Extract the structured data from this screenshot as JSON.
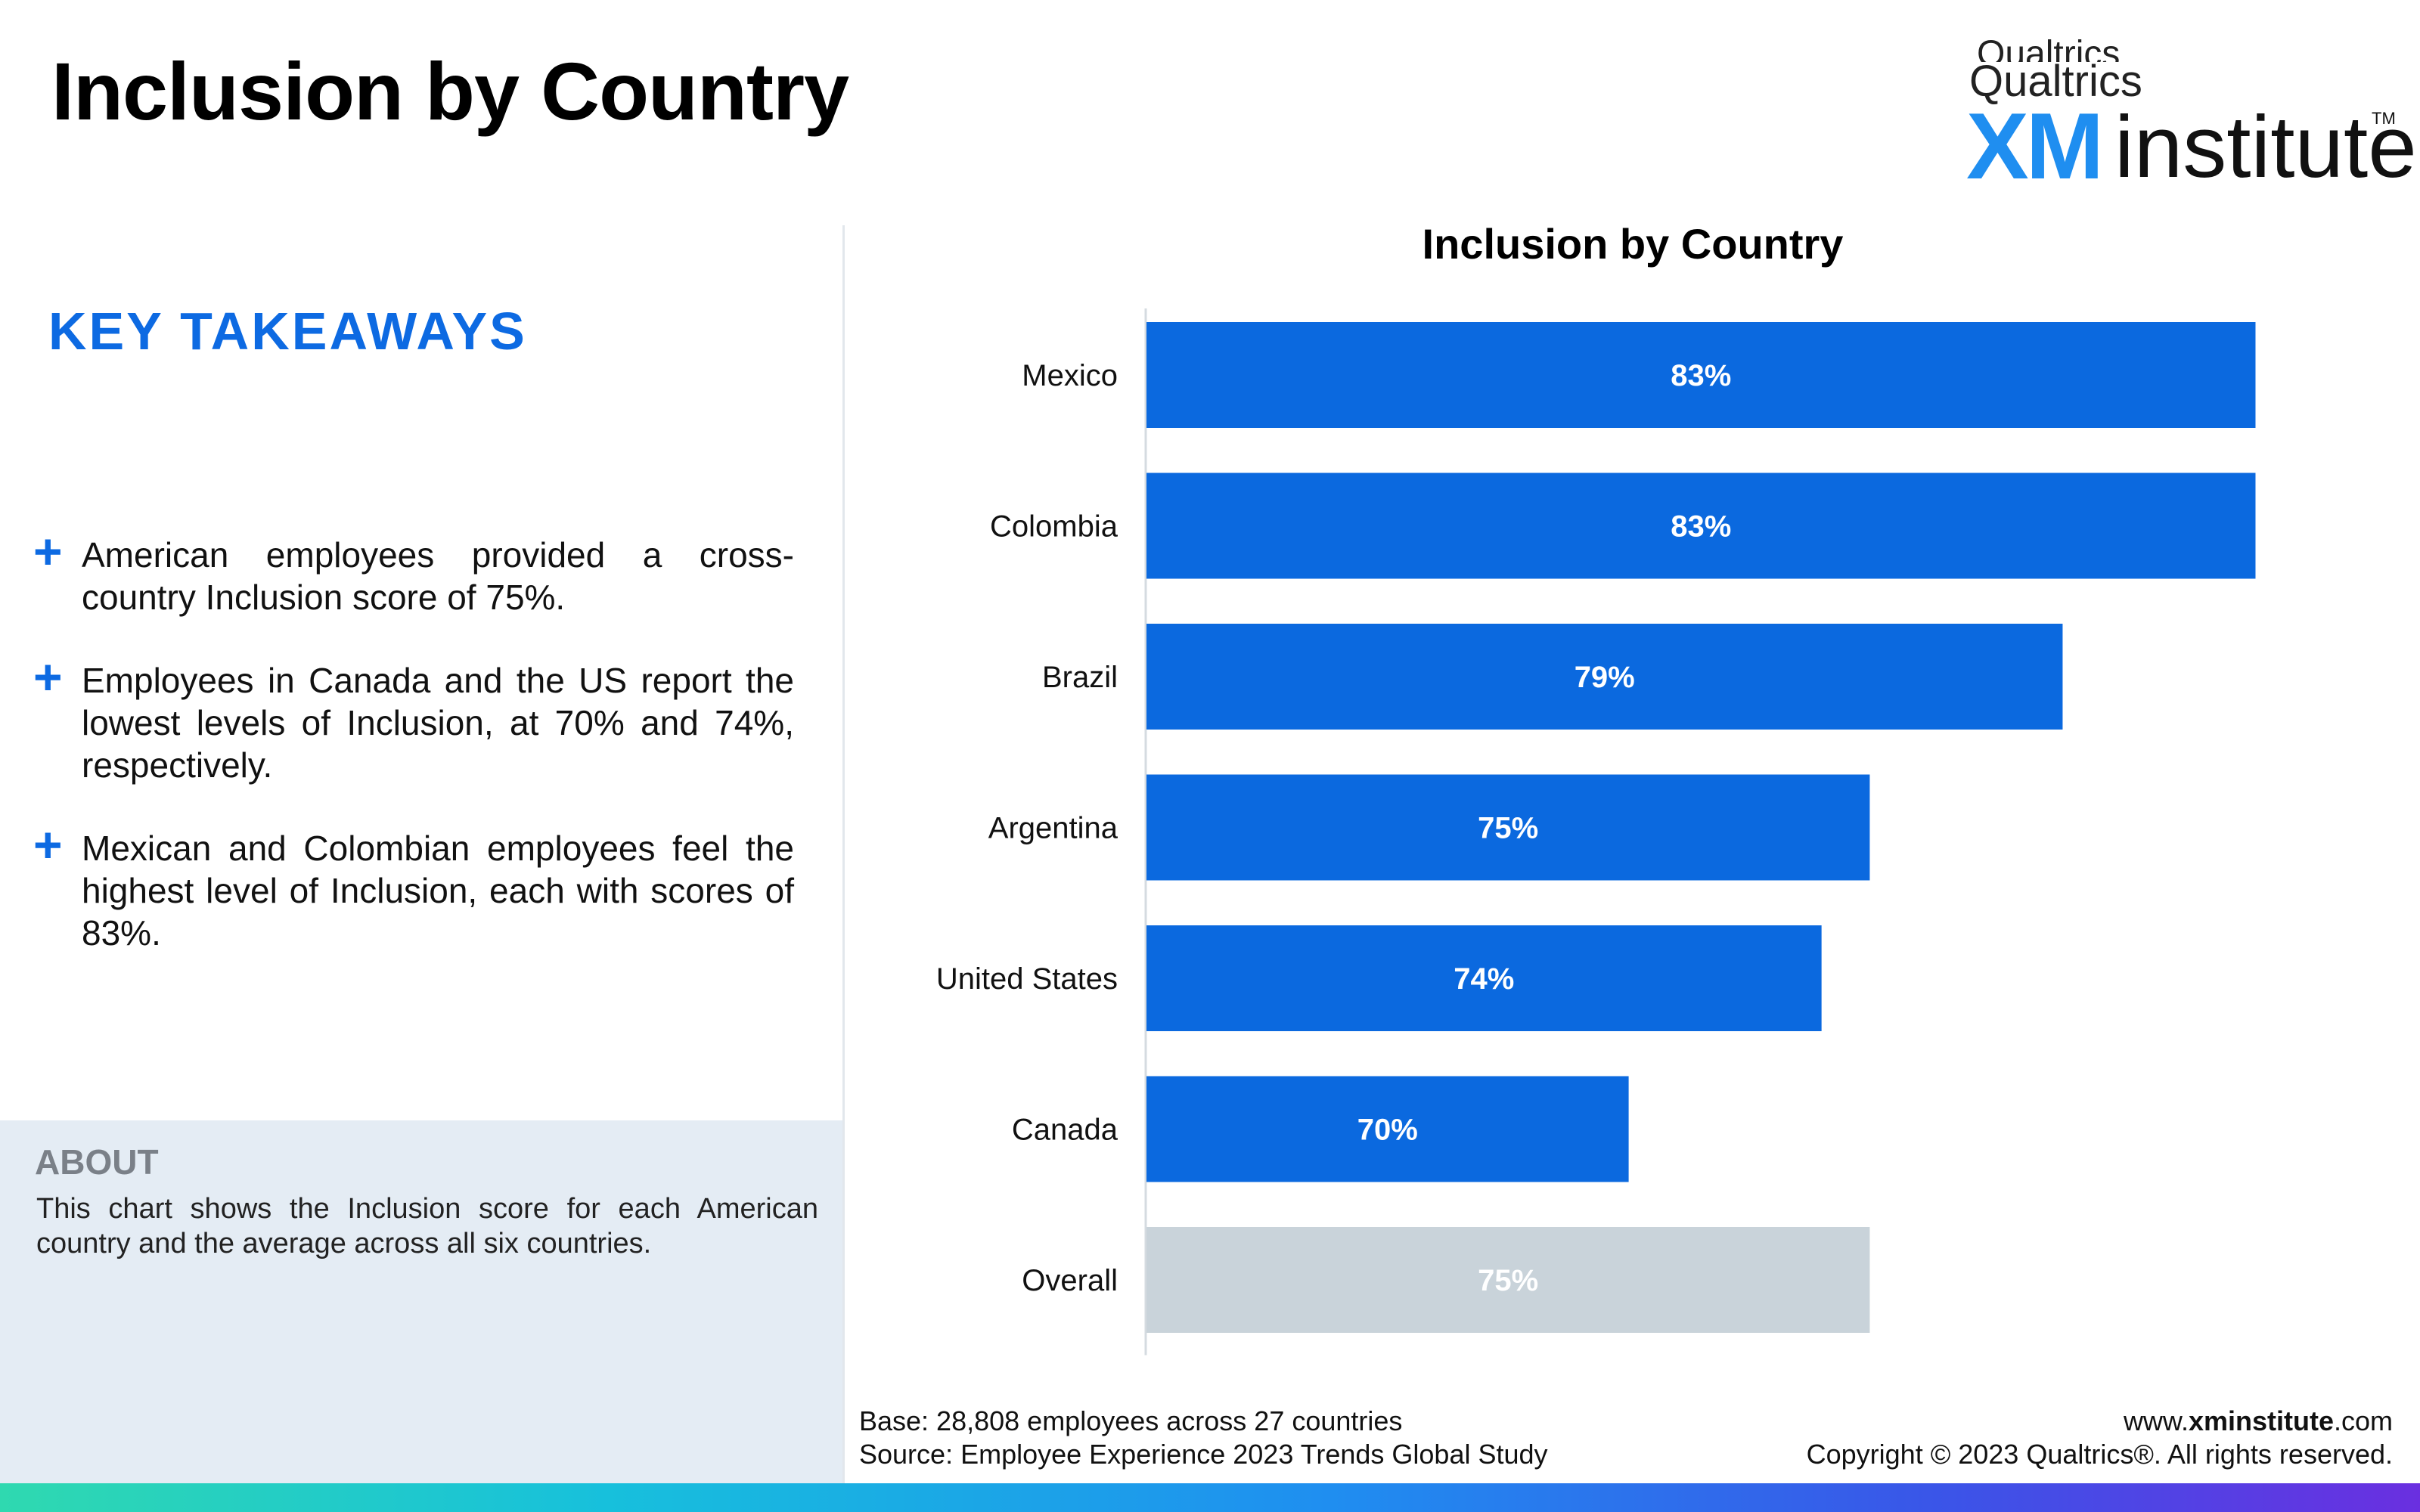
{
  "page": {
    "title": "Inclusion by Country"
  },
  "logo": {
    "top_text": "Qualtrics",
    "brand": "Qualtrics",
    "xm": "XM",
    "institute": "institute",
    "tm": "TM"
  },
  "takeaways": {
    "heading": "KEY TAKEAWAYS",
    "items": [
      "American employees provided a cross-country Inclusion score of 75%.",
      "Employees in Canada and the US report the lowest levels of Inclusion, at 70% and 74%, respectively.",
      "Mexican and Colombian employees feel the highest level of Inclusion, each with scores of 83%."
    ]
  },
  "about": {
    "heading": "ABOUT",
    "text": "This chart shows the Inclusion score for each American country and the average across all six countries."
  },
  "chart_data": {
    "type": "bar",
    "orientation": "horizontal",
    "title": "Inclusion by Country",
    "xlabel": "",
    "ylabel": "",
    "categories": [
      "Mexico",
      "Colombia",
      "Brazil",
      "Argentina",
      "United States",
      "Canada",
      "Overall"
    ],
    "values": [
      83,
      83,
      79,
      75,
      74,
      70,
      75
    ],
    "value_labels": [
      "83%",
      "83%",
      "79%",
      "75%",
      "74%",
      "70%",
      "75%"
    ],
    "xlim": [
      60,
      85
    ],
    "grid": false,
    "legend": "none",
    "colors": {
      "bar": "#0b69df",
      "overall_bar": "#c9d3da"
    }
  },
  "footer": {
    "base": "Base: 28,808 employees across 27 countries",
    "source": "Source: Employee Experience 2023 Trends Global Study",
    "url_prefix": "www.",
    "url_bold": "xminstitute",
    "url_suffix": ".com",
    "copyright": "Copyright © 2023 Qualtrics®. All rights reserved."
  }
}
